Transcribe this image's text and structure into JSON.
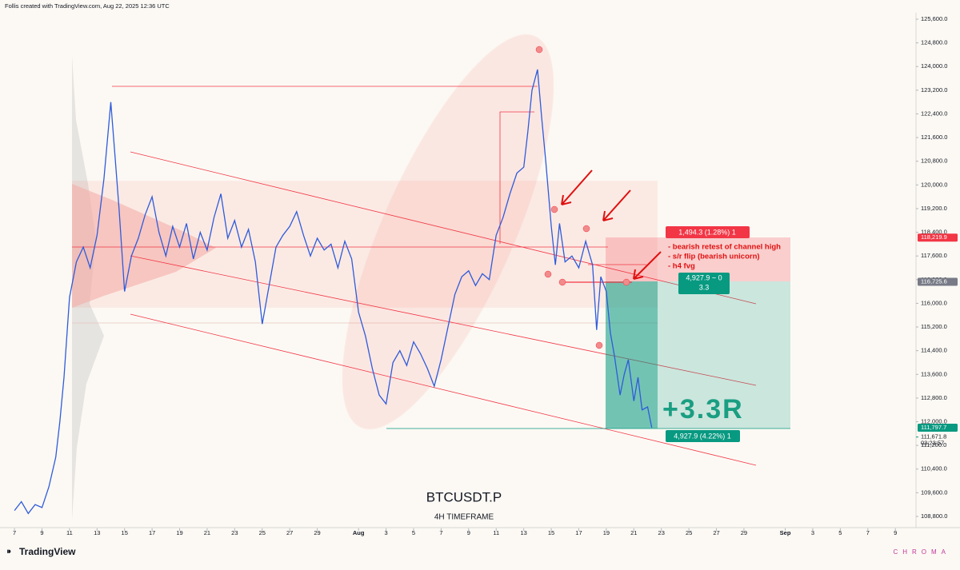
{
  "header": "Follis created with TradingView.com, Aug 22, 2025 12:36 UTC",
  "chart_data": {
    "type": "line",
    "title": "BTCUSDT.P",
    "subtitle": "4H TIMEFRAME",
    "color": "#2f5bdb",
    "x": [
      7,
      7.5,
      8,
      8.5,
      9,
      9.5,
      10,
      10.3,
      10.6,
      11,
      11.5,
      12,
      12.5,
      13,
      13.5,
      14,
      14.3,
      14.6,
      15,
      15.5,
      16,
      16.5,
      17,
      17.5,
      18,
      18.5,
      19,
      19.5,
      20,
      20.5,
      21,
      21.5,
      22,
      22.5,
      23,
      23.5,
      24,
      24.5,
      25,
      25.5,
      26,
      26.5,
      27,
      27.5,
      28,
      28.5,
      29,
      29.5,
      30,
      30.5,
      31,
      31.5,
      32,
      32.5,
      33,
      33.5,
      34,
      34.5,
      35,
      35.5,
      36,
      36.5,
      37,
      37.5,
      38,
      38.5,
      39,
      39.5,
      40,
      40.5,
      41,
      41.5,
      42,
      42.5,
      43,
      43.5,
      44,
      44.3,
      44.6,
      45,
      45.3,
      45.6,
      46,
      46.3,
      46.6,
      47,
      47.5,
      48,
      48.5,
      49,
      49.3,
      49.6,
      50,
      50.3,
      50.6,
      51,
      51.3,
      51.6,
      52,
      52.3,
      52.6,
      53,
      53.3
    ],
    "values": [
      109000,
      109300,
      108900,
      109200,
      109100,
      109800,
      110800,
      112000,
      113500,
      116200,
      117400,
      117900,
      117200,
      118300,
      120200,
      122800,
      121000,
      119200,
      116400,
      117600,
      118200,
      119000,
      119600,
      118400,
      117600,
      118600,
      117900,
      118700,
      117500,
      118400,
      117800,
      118900,
      119700,
      118200,
      118800,
      117900,
      118500,
      117400,
      115300,
      116600,
      117900,
      118300,
      118600,
      119100,
      118300,
      117600,
      118200,
      117800,
      118000,
      117200,
      118100,
      117500,
      115700,
      114900,
      113800,
      112900,
      112600,
      114000,
      114400,
      113900,
      114700,
      114300,
      113800,
      113200,
      114100,
      115200,
      116300,
      116900,
      117100,
      116600,
      117000,
      116800,
      118300,
      118900,
      119700,
      120400,
      120600,
      121800,
      123200,
      123900,
      122300,
      120800,
      118600,
      117300,
      118700,
      117400,
      117600,
      117200,
      118100,
      117300,
      115100,
      116900,
      116400,
      115000,
      114200,
      112900,
      113600,
      114100,
      112700,
      113500,
      112400,
      112500,
      111800
    ],
    "xlim": [
      5.95,
      72.5
    ],
    "ylim": [
      108400,
      125800
    ],
    "xticks": [
      {
        "value": 7,
        "label": "7"
      },
      {
        "value": 9,
        "label": "9"
      },
      {
        "value": 11,
        "label": "11"
      },
      {
        "value": 13,
        "label": "13"
      },
      {
        "value": 15,
        "label": "15"
      },
      {
        "value": 17,
        "label": "17"
      },
      {
        "value": 19,
        "label": "19"
      },
      {
        "value": 21,
        "label": "21"
      },
      {
        "value": 23,
        "label": "23"
      },
      {
        "value": 25,
        "label": "25"
      },
      {
        "value": 27,
        "label": "27"
      },
      {
        "value": 29,
        "label": "29"
      },
      {
        "value": 32,
        "label": "Aug"
      },
      {
        "value": 34,
        "label": "3"
      },
      {
        "value": 36,
        "label": "5"
      },
      {
        "value": 38,
        "label": "7"
      },
      {
        "value": 40,
        "label": "9"
      },
      {
        "value": 42,
        "label": "11"
      },
      {
        "value": 44,
        "label": "13"
      },
      {
        "value": 46,
        "label": "15"
      },
      {
        "value": 48,
        "label": "17"
      },
      {
        "value": 50,
        "label": "19"
      },
      {
        "value": 52,
        "label": "21"
      },
      {
        "value": 54,
        "label": "23"
      },
      {
        "value": 56,
        "label": "25"
      },
      {
        "value": 58,
        "label": "27"
      },
      {
        "value": 60,
        "label": "29"
      },
      {
        "value": 63,
        "label": "Sep"
      },
      {
        "value": 65,
        "label": "3"
      },
      {
        "value": 67,
        "label": "5"
      },
      {
        "value": 69,
        "label": "7"
      },
      {
        "value": 71,
        "label": "9"
      }
    ],
    "yticks": [
      {
        "value": 108800,
        "label": "108,800.0"
      },
      {
        "value": 109600,
        "label": "109,600.0"
      },
      {
        "value": 110400,
        "label": "110,400.0"
      },
      {
        "value": 111200,
        "label": "111,200.0"
      },
      {
        "value": 112000,
        "label": "112,000.0"
      },
      {
        "value": 112800,
        "label": "112,800.0"
      },
      {
        "value": 113600,
        "label": "113,600.0"
      },
      {
        "value": 114400,
        "label": "114,400.0"
      },
      {
        "value": 115200,
        "label": "115,200.0"
      },
      {
        "value": 116000,
        "label": "116,000.0"
      },
      {
        "value": 116800,
        "label": "116,800.0"
      },
      {
        "value": 117600,
        "label": "117,600.0"
      },
      {
        "value": 118400,
        "label": "118,400.0"
      },
      {
        "value": 119200,
        "label": "119,200.0"
      },
      {
        "value": 120000,
        "label": "120,000.0"
      },
      {
        "value": 120800,
        "label": "120,800.0"
      },
      {
        "value": 121600,
        "label": "121,600.0"
      },
      {
        "value": 122400,
        "label": "122,400.0"
      },
      {
        "value": 123200,
        "label": "123,200.0"
      },
      {
        "value": 124000,
        "label": "124,000.0"
      },
      {
        "value": 124800,
        "label": "124,800.0"
      },
      {
        "value": 125600,
        "label": "125,600.0"
      }
    ],
    "price_tags": [
      {
        "value": 118219.9,
        "label": "118,219.9",
        "color": "#f23645"
      },
      {
        "value": 116725.6,
        "label": "116,725.6",
        "color": "#787b86"
      },
      {
        "value": 111797.7,
        "label": "111,797.7",
        "color": "#089981"
      }
    ],
    "last_price": {
      "value": 111671.8,
      "label": "111,671.8"
    },
    "countdown": "03:23:57",
    "risk_label": "1,494.3 (1.28%) 1",
    "notes": [
      "- bearish retest of channel high",
      "- s/r flip (bearish unicorn)",
      "- h4 fvg"
    ],
    "ratio_label": [
      "4,927.9 ~ 0",
      "3.3"
    ],
    "result": "+3.3R",
    "target_label": "4,927.9 (4.22%) 1"
  },
  "footer": {
    "brand": "TradingView",
    "watermark": "CHROMA"
  }
}
